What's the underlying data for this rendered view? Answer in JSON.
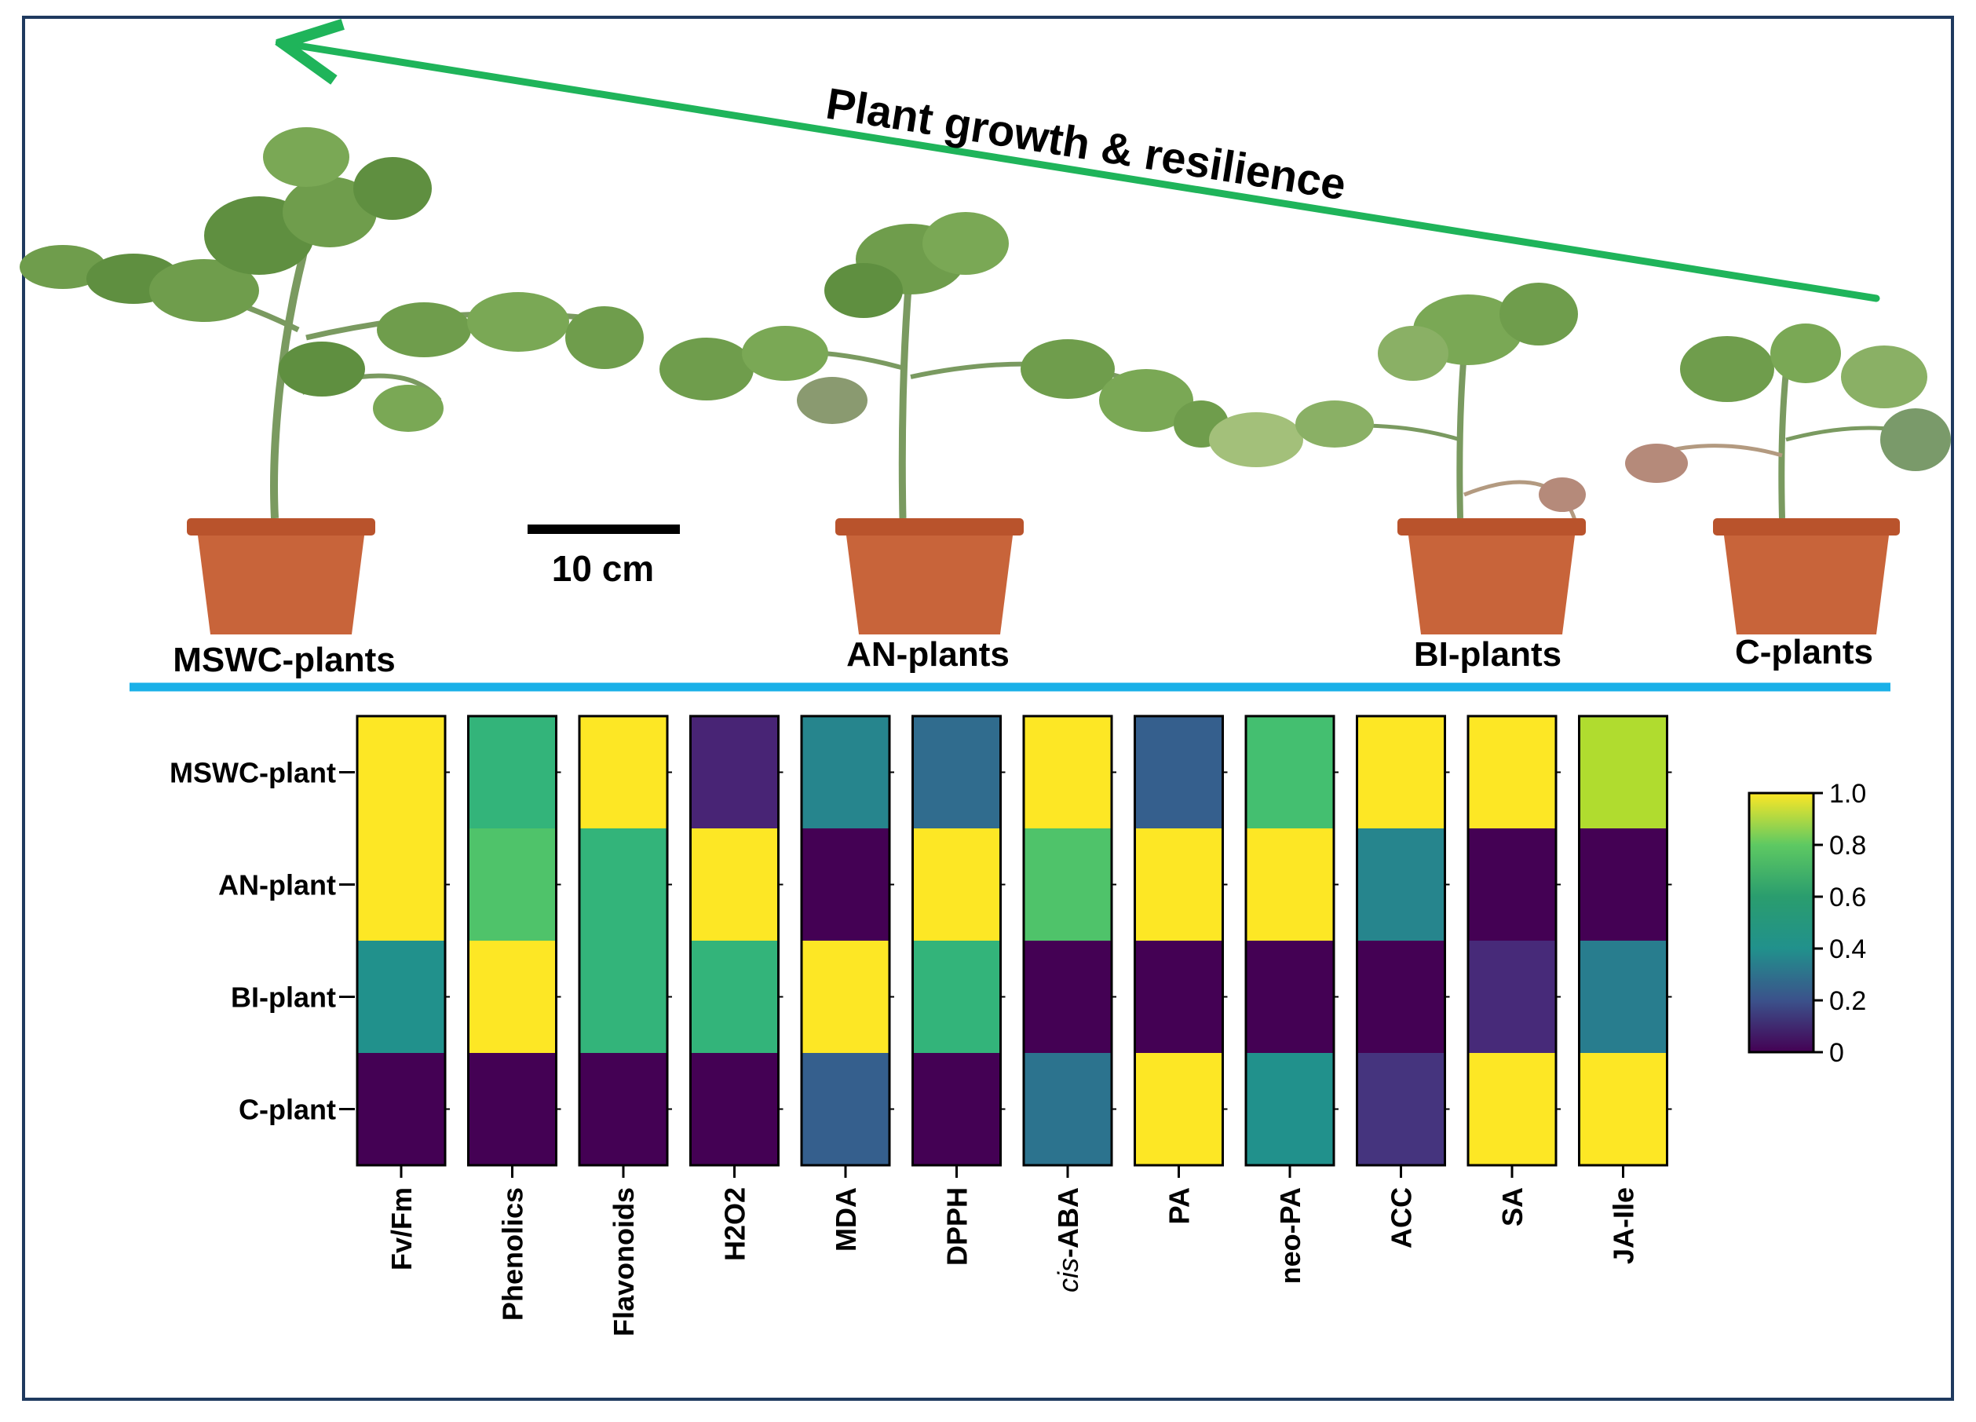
{
  "banner": {
    "arrow_label": "Plant growth & resilience",
    "scale_bar_label": "10 cm",
    "plants": [
      {
        "label": "MSWC-plants"
      },
      {
        "label": "AN-plants"
      },
      {
        "label": "BI-plants"
      },
      {
        "label": "C-plants"
      }
    ]
  },
  "colors": {
    "frame": "#1f3a5f",
    "arrow": "#1fb45a",
    "divider": "#1ab0e8",
    "pot": "#c8643a",
    "pot_rim": "#b9532c",
    "leaf": "#6f9d4c",
    "stem": "#7a9a60",
    "scale_bar": "#000000"
  },
  "chart_data": {
    "type": "heatmap",
    "title": "",
    "rows": [
      "MSWC-plant",
      "AN-plant",
      "BI-plant",
      "C-plant"
    ],
    "columns": [
      {
        "label": "Fv/Fm"
      },
      {
        "label": "Phenolics"
      },
      {
        "label": "Flavonoids"
      },
      {
        "label": "H2O2"
      },
      {
        "label": "MDA"
      },
      {
        "label": "DPPH"
      },
      {
        "label": "-ABA",
        "italic_prefix": "cis"
      },
      {
        "label": "PA"
      },
      {
        "label": "neo-PA"
      },
      {
        "label": "ACC"
      },
      {
        "label": "SA"
      },
      {
        "label": "JA-Ile"
      }
    ],
    "values": [
      [
        1.0,
        0.65,
        1.0,
        0.1,
        0.45,
        0.35,
        1.0,
        0.3,
        0.7,
        1.0,
        1.0,
        0.88
      ],
      [
        1.0,
        0.72,
        0.65,
        1.0,
        0.0,
        1.0,
        0.72,
        1.0,
        1.0,
        0.45,
        0.0,
        0.0
      ],
      [
        0.5,
        1.0,
        0.65,
        0.65,
        1.0,
        0.65,
        0.0,
        0.0,
        0.0,
        0.0,
        0.12,
        0.42
      ],
      [
        0.0,
        0.0,
        0.0,
        0.0,
        0.3,
        0.0,
        0.38,
        1.0,
        0.5,
        0.15,
        1.0,
        1.0
      ]
    ],
    "colorbar": {
      "range": [
        0,
        1
      ],
      "ticks": [
        "0",
        "0.2",
        "0.4",
        "0.6",
        "0.8",
        "1.0"
      ],
      "colormap": "viridis"
    }
  }
}
